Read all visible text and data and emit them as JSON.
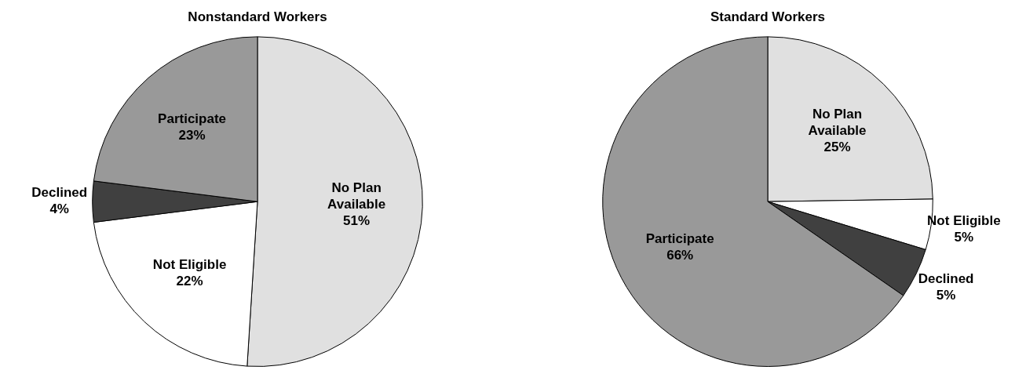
{
  "chart_data": [
    {
      "type": "pie",
      "title": "Nonstandard Workers",
      "categories": [
        "No Plan Available",
        "Not Eligible",
        "Declined",
        "Participate"
      ],
      "values": [
        51,
        22,
        4,
        23
      ],
      "value_labels": [
        "51%",
        "22%",
        "4%",
        "23%"
      ],
      "colors": [
        "#e0e0e0",
        "#ffffff",
        "#404040",
        "#999999"
      ]
    },
    {
      "type": "pie",
      "title": "Standard Workers",
      "categories": [
        "No Plan Available",
        "Not Eligible",
        "Declined",
        "Participate"
      ],
      "values": [
        25,
        5,
        5,
        66
      ],
      "value_labels": [
        "25%",
        "5%",
        "5%",
        "66%"
      ],
      "colors": [
        "#e0e0e0",
        "#ffffff",
        "#404040",
        "#999999"
      ]
    }
  ]
}
